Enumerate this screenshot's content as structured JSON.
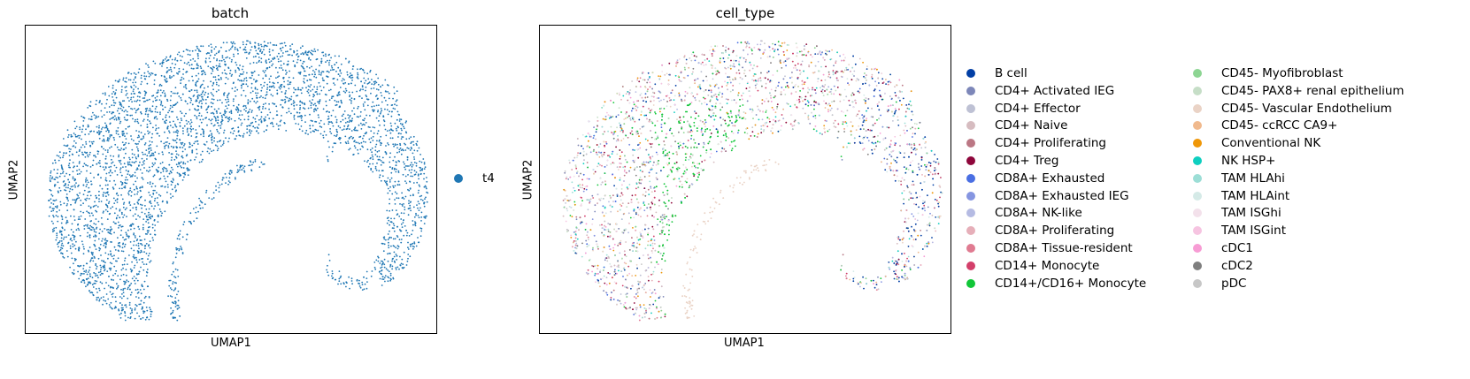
{
  "chart_data": [
    {
      "type": "scatter",
      "title": "batch",
      "xlabel": "UMAP1",
      "ylabel": "UMAP2",
      "grid": false,
      "legend_position": "right",
      "legend": [
        {
          "label": "t4",
          "color": "#1f77b4"
        }
      ]
    },
    {
      "type": "scatter",
      "title": "cell_type",
      "xlabel": "UMAP1",
      "ylabel": "UMAP2",
      "grid": false,
      "legend_position": "right",
      "legend": [
        {
          "label": "B cell",
          "color": "#023fa5"
        },
        {
          "label": "CD4+ Activated IEG",
          "color": "#7d87b9"
        },
        {
          "label": "CD4+ Effector",
          "color": "#bec1d4"
        },
        {
          "label": "CD4+ Naive",
          "color": "#d6bcc0"
        },
        {
          "label": "CD4+ Proliferating",
          "color": "#bb7784"
        },
        {
          "label": "CD4+ Treg",
          "color": "#8e063b"
        },
        {
          "label": "CD8A+ Exhausted",
          "color": "#4a6fe3"
        },
        {
          "label": "CD8A+ Exhausted IEG",
          "color": "#8595e1"
        },
        {
          "label": "CD8A+ NK-like",
          "color": "#b5bbe3"
        },
        {
          "label": "CD8A+ Proliferating",
          "color": "#e6afb9"
        },
        {
          "label": "CD8A+ Tissue-resident",
          "color": "#e07b91"
        },
        {
          "label": "CD14+ Monocyte",
          "color": "#d33f6a"
        },
        {
          "label": "CD14+/CD16+ Monocyte",
          "color": "#11c638"
        },
        {
          "label": "CD45- Myofibroblast",
          "color": "#8dd593"
        },
        {
          "label": "CD45- PAX8+ renal epithelium",
          "color": "#c6dec7"
        },
        {
          "label": "CD45- Vascular Endothelium",
          "color": "#ead3c6"
        },
        {
          "label": "CD45- ccRCC CA9+",
          "color": "#f0b98d"
        },
        {
          "label": "Conventional NK",
          "color": "#ef9708"
        },
        {
          "label": "NK HSP+",
          "color": "#0fcfc0"
        },
        {
          "label": "TAM HLAhi",
          "color": "#9cded6"
        },
        {
          "label": "TAM HLAint",
          "color": "#d5eae7"
        },
        {
          "label": "TAM ISGhi",
          "color": "#f3e1eb"
        },
        {
          "label": "TAM ISGint",
          "color": "#f6c4e1"
        },
        {
          "label": "cDC1",
          "color": "#f79cd4"
        },
        {
          "label": "cDC2",
          "color": "#7f7f7f"
        },
        {
          "label": "pDC",
          "color": "#c7c7c7"
        }
      ]
    }
  ]
}
